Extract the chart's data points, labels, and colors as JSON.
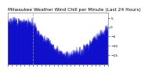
{
  "title": "Milwaukee Weather Wind Chill per Minute (Last 24 Hours)",
  "title_fontsize": 4.2,
  "line_color": "#0000cc",
  "background_color": "#ffffff",
  "plot_bg_color": "#ffffff",
  "ylim": [
    -20,
    8
  ],
  "yticks": [
    5,
    0,
    -5,
    -10,
    -15
  ],
  "num_points": 1440,
  "seed": 7,
  "grid_color": "#999999",
  "tick_fontsize": 3.2,
  "noise_std": 2.8
}
